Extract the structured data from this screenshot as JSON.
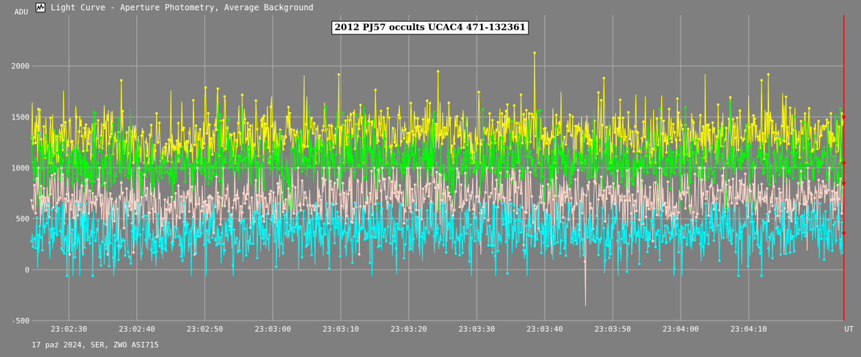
{
  "window": {
    "title": "Light Curve - Aperture Photometry, Average Background",
    "icon": "light-curve-app-icon"
  },
  "footer": "17 paź 2024, SER, ZWO ASI715",
  "colors": {
    "background": "#7f7f7f",
    "grid": "#b0b0b0",
    "text": "#ffffff",
    "marker_line": "#ff0000",
    "title_box_bg": "#ffffff",
    "title_box_border": "#000000"
  },
  "chart_data": {
    "type": "line",
    "title": "2012 PJ57 occults UCAC4 471-132361",
    "ylabel": "ADU",
    "xlabel": "UT",
    "ylim": [
      -500,
      2500
    ],
    "xlim_seconds": [
      "23:02:24.5",
      "23:04:24.0"
    ],
    "yticks": [
      {
        "value": 2000,
        "label": "2000"
      },
      {
        "value": 1500,
        "label": "1500"
      },
      {
        "value": 1000,
        "label": "1000"
      },
      {
        "value": 500,
        "label": "500"
      },
      {
        "value": 0,
        "label": "0"
      },
      {
        "value": -500,
        "label": "-500"
      }
    ],
    "xticks": [
      {
        "time": "23:02:30",
        "label": "23:02:30"
      },
      {
        "time": "23:02:40",
        "label": "23:02:40"
      },
      {
        "time": "23:02:50",
        "label": "23:02:50"
      },
      {
        "time": "23:03:00",
        "label": "23:03:00"
      },
      {
        "time": "23:03:10",
        "label": "23:03:10"
      },
      {
        "time": "23:03:20",
        "label": "23:03:20"
      },
      {
        "time": "23:03:30",
        "label": "23:03:30"
      },
      {
        "time": "23:03:40",
        "label": "23:03:40"
      },
      {
        "time": "23:03:50",
        "label": "23:03:50"
      },
      {
        "time": "23:04:00",
        "label": "23:04:00"
      },
      {
        "time": "23:04:10",
        "label": "23:04:10"
      }
    ],
    "grid": true,
    "legend": "none",
    "series": [
      {
        "color": "#ffff00",
        "level_profile": [
          {
            "time": "23:02:25",
            "value": 1280
          },
          {
            "time": "23:02:35",
            "value": 1300
          },
          {
            "time": "23:02:45",
            "value": 1200
          },
          {
            "time": "23:02:55",
            "value": 1300
          },
          {
            "time": "23:03:05",
            "value": 1350
          },
          {
            "time": "23:03:15",
            "value": 1380
          },
          {
            "time": "23:03:25",
            "value": 1350
          },
          {
            "time": "23:03:35",
            "value": 1330
          },
          {
            "time": "23:03:45",
            "value": 1330
          },
          {
            "time": "23:03:55",
            "value": 1300
          },
          {
            "time": "23:04:05",
            "value": 1330
          },
          {
            "time": "23:04:15",
            "value": 1320
          },
          {
            "time": "23:04:24",
            "value": 1300
          }
        ],
        "scatter_range": [
          1050,
          2130
        ],
        "peak": {
          "time": "23:03:38.5",
          "value": 2130
        },
        "last_value": 1500
      },
      {
        "color": "#00ff00",
        "level_profile": [
          {
            "time": "23:02:25",
            "value": 1050
          },
          {
            "time": "23:02:35",
            "value": 1020
          },
          {
            "time": "23:02:45",
            "value": 980
          },
          {
            "time": "23:02:55",
            "value": 1050
          },
          {
            "time": "23:03:05",
            "value": 1080
          },
          {
            "time": "23:03:15",
            "value": 1100
          },
          {
            "time": "23:03:25",
            "value": 1050
          },
          {
            "time": "23:03:35",
            "value": 1030
          },
          {
            "time": "23:03:45",
            "value": 1030
          },
          {
            "time": "23:03:55",
            "value": 1050
          },
          {
            "time": "23:04:05",
            "value": 1080
          },
          {
            "time": "23:04:15",
            "value": 1050
          },
          {
            "time": "23:04:24",
            "value": 1050
          }
        ],
        "scatter_range": [
          600,
          1650
        ],
        "last_value": 1050
      },
      {
        "color": "#ffd8cc",
        "level_profile": [
          {
            "time": "23:02:25",
            "value": 700
          },
          {
            "time": "23:02:35",
            "value": 680
          },
          {
            "time": "23:02:45",
            "value": 600
          },
          {
            "time": "23:02:55",
            "value": 620
          },
          {
            "time": "23:03:05",
            "value": 700
          },
          {
            "time": "23:03:15",
            "value": 700
          },
          {
            "time": "23:03:25",
            "value": 720
          },
          {
            "time": "23:03:35",
            "value": 720
          },
          {
            "time": "23:03:45",
            "value": 680
          },
          {
            "time": "23:03:55",
            "value": 700
          },
          {
            "time": "23:04:05",
            "value": 720
          },
          {
            "time": "23:04:15",
            "value": 700
          },
          {
            "time": "23:04:24",
            "value": 700
          }
        ],
        "scatter_range": [
          150,
          1000
        ],
        "dip": {
          "time": "23:03:46",
          "value": -360
        },
        "last_value": 850
      },
      {
        "color": "#00ffff",
        "level_profile": [
          {
            "time": "23:02:25",
            "value": 330
          },
          {
            "time": "23:02:35",
            "value": 330
          },
          {
            "time": "23:02:45",
            "value": 330
          },
          {
            "time": "23:02:55",
            "value": 350
          },
          {
            "time": "23:03:05",
            "value": 380
          },
          {
            "time": "23:03:15",
            "value": 380
          },
          {
            "time": "23:03:25",
            "value": 380
          },
          {
            "time": "23:03:35",
            "value": 370
          },
          {
            "time": "23:03:45",
            "value": 360
          },
          {
            "time": "23:03:55",
            "value": 350
          },
          {
            "time": "23:04:05",
            "value": 380
          },
          {
            "time": "23:04:15",
            "value": 370
          },
          {
            "time": "23:04:24",
            "value": 360
          }
        ],
        "scatter_range": [
          -60,
          650
        ],
        "last_value": 360
      }
    ]
  }
}
